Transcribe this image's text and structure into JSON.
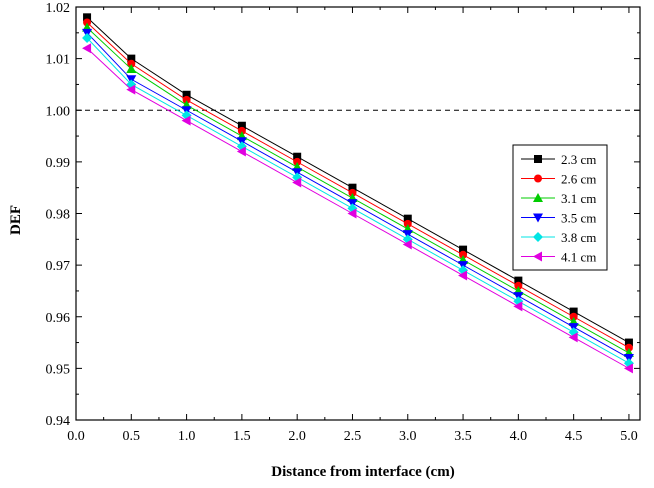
{
  "chart_data": {
    "type": "line",
    "title": "",
    "xlabel": "Distance from interface (cm)",
    "ylabel": "DEF",
    "xlim": [
      0,
      5.1
    ],
    "ylim": [
      0.94,
      1.02
    ],
    "x_ticks": [
      "0.0",
      "0.5",
      "1.0",
      "1.5",
      "2.0",
      "2.5",
      "3.0",
      "3.5",
      "4.0",
      "4.5",
      "5.0"
    ],
    "y_ticks": [
      "0.94",
      "0.95",
      "0.96",
      "0.97",
      "0.98",
      "0.99",
      "1.00",
      "1.01",
      "1.02"
    ],
    "reference_line": {
      "y": 1.0,
      "style": "dashed"
    },
    "grid": false,
    "legend_position": "right",
    "x": [
      0.1,
      0.5,
      1.0,
      1.5,
      2.0,
      2.5,
      3.0,
      3.5,
      4.0,
      4.5,
      5.0
    ],
    "series": [
      {
        "name": "2.3 cm",
        "color": "#000000",
        "marker": "square",
        "values": [
          1.018,
          1.01,
          1.003,
          0.997,
          0.991,
          0.985,
          0.979,
          0.973,
          0.967,
          0.961,
          0.955
        ]
      },
      {
        "name": "2.6 cm",
        "color": "#ff0000",
        "marker": "circle",
        "values": [
          1.017,
          1.009,
          1.002,
          0.996,
          0.99,
          0.984,
          0.978,
          0.972,
          0.966,
          0.96,
          0.954
        ]
      },
      {
        "name": "3.1 cm",
        "color": "#00cc00",
        "marker": "triangle-up",
        "values": [
          1.016,
          1.008,
          1.001,
          0.995,
          0.989,
          0.983,
          0.977,
          0.971,
          0.965,
          0.959,
          0.953
        ]
      },
      {
        "name": "3.5 cm",
        "color": "#0000ff",
        "marker": "triangle-down",
        "values": [
          1.015,
          1.006,
          1.0,
          0.994,
          0.988,
          0.982,
          0.976,
          0.97,
          0.964,
          0.958,
          0.952
        ]
      },
      {
        "name": "3.8 cm",
        "color": "#00e5e5",
        "marker": "diamond",
        "values": [
          1.014,
          1.005,
          0.999,
          0.993,
          0.987,
          0.981,
          0.975,
          0.969,
          0.963,
          0.957,
          0.951
        ]
      },
      {
        "name": "4.1 cm",
        "color": "#e000e0",
        "marker": "triangle-left",
        "values": [
          1.012,
          1.004,
          0.998,
          0.992,
          0.986,
          0.98,
          0.974,
          0.968,
          0.962,
          0.956,
          0.95
        ]
      }
    ]
  }
}
